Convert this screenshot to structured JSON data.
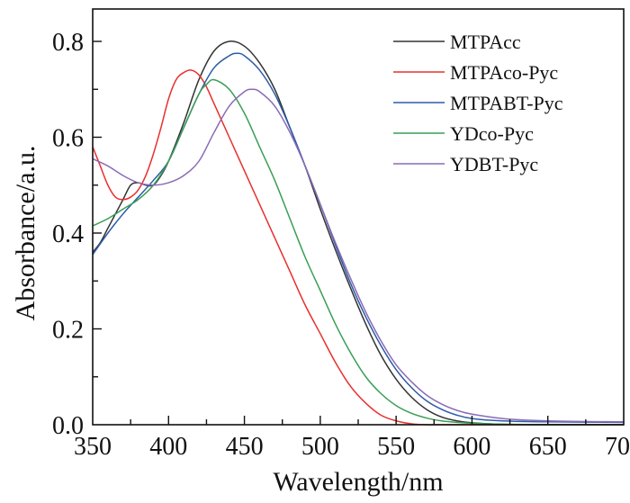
{
  "chart_data": {
    "type": "line",
    "title": "",
    "xlabel": "Wavelength/nm",
    "ylabel": "Absorbance/a.u.",
    "xlim": [
      350,
      700
    ],
    "ylim": [
      0.0,
      0.84
    ],
    "x_ticks": [
      350,
      400,
      450,
      500,
      550,
      600,
      650,
      700
    ],
    "x_tick_labels": [
      "350",
      "400",
      "450",
      "500",
      "550",
      "600",
      "650",
      "700"
    ],
    "x_minor_step": 25,
    "y_ticks": [
      0.0,
      0.2,
      0.4,
      0.6,
      0.8
    ],
    "y_tick_labels": [
      "0.0",
      "0.2",
      "0.4",
      "0.6",
      "0.8"
    ],
    "y_minor_step": 0.1,
    "grid": false,
    "legend_position": "top-right",
    "series": [
      {
        "name": "MTPAcc",
        "color": "#333333",
        "x": [
          350,
          355,
          360,
          365,
          370,
          375,
          380,
          385,
          390,
          395,
          400,
          410,
          420,
          430,
          440,
          450,
          460,
          470,
          480,
          490,
          500,
          510,
          520,
          530,
          540,
          550,
          560,
          570,
          580,
          590,
          600,
          620,
          650,
          700
        ],
        "y": [
          0.36,
          0.38,
          0.41,
          0.44,
          0.47,
          0.5,
          0.505,
          0.5,
          0.5,
          0.52,
          0.55,
          0.63,
          0.72,
          0.78,
          0.8,
          0.79,
          0.755,
          0.7,
          0.62,
          0.54,
          0.45,
          0.365,
          0.285,
          0.21,
          0.145,
          0.095,
          0.058,
          0.032,
          0.016,
          0.008,
          0.004,
          0.001,
          0.0,
          0.0
        ]
      },
      {
        "name": "MTPAco-Pyc",
        "color": "#e8302c",
        "x": [
          350,
          355,
          360,
          365,
          370,
          375,
          380,
          385,
          390,
          395,
          400,
          405,
          410,
          415,
          420,
          425,
          430,
          440,
          450,
          460,
          470,
          480,
          490,
          500,
          510,
          520,
          530,
          540,
          550,
          560,
          570,
          580,
          600,
          650,
          700
        ],
        "y": [
          0.58,
          0.54,
          0.5,
          0.475,
          0.47,
          0.475,
          0.49,
          0.52,
          0.565,
          0.62,
          0.68,
          0.72,
          0.735,
          0.74,
          0.73,
          0.705,
          0.67,
          0.6,
          0.53,
          0.46,
          0.39,
          0.32,
          0.25,
          0.19,
          0.13,
          0.08,
          0.045,
          0.02,
          0.008,
          0.002,
          0.0,
          0.0,
          0.0,
          0.0,
          0.0
        ]
      },
      {
        "name": "MTPABT-Pyc",
        "color": "#2c5ba8",
        "x": [
          350,
          360,
          370,
          380,
          390,
          400,
          410,
          420,
          430,
          440,
          445,
          450,
          460,
          470,
          480,
          490,
          500,
          510,
          520,
          530,
          540,
          550,
          560,
          570,
          580,
          590,
          600,
          620,
          650,
          700
        ],
        "y": [
          0.355,
          0.4,
          0.44,
          0.475,
          0.51,
          0.55,
          0.62,
          0.69,
          0.745,
          0.77,
          0.775,
          0.77,
          0.74,
          0.69,
          0.62,
          0.54,
          0.46,
          0.375,
          0.295,
          0.225,
          0.165,
          0.115,
          0.078,
          0.05,
          0.032,
          0.02,
          0.013,
          0.008,
          0.006,
          0.005
        ]
      },
      {
        "name": "YDco-Pyc",
        "color": "#3a9e55",
        "x": [
          350,
          360,
          370,
          380,
          390,
          400,
          410,
          420,
          425,
          430,
          440,
          450,
          460,
          470,
          480,
          490,
          500,
          510,
          520,
          530,
          540,
          550,
          560,
          570,
          580,
          590,
          600,
          620,
          650,
          700
        ],
        "y": [
          0.415,
          0.43,
          0.45,
          0.47,
          0.5,
          0.55,
          0.62,
          0.69,
          0.71,
          0.72,
          0.7,
          0.65,
          0.58,
          0.51,
          0.43,
          0.35,
          0.28,
          0.21,
          0.15,
          0.1,
          0.065,
          0.04,
          0.024,
          0.014,
          0.008,
          0.005,
          0.003,
          0.001,
          0.0,
          0.0
        ]
      },
      {
        "name": "YDBT-Pyc",
        "color": "#8a6bb5",
        "x": [
          350,
          360,
          370,
          380,
          390,
          400,
          410,
          420,
          430,
          440,
          450,
          455,
          460,
          470,
          480,
          490,
          500,
          510,
          520,
          530,
          540,
          550,
          560,
          570,
          580,
          590,
          600,
          620,
          650,
          700
        ],
        "y": [
          0.555,
          0.54,
          0.52,
          0.505,
          0.5,
          0.505,
          0.52,
          0.55,
          0.61,
          0.665,
          0.695,
          0.7,
          0.695,
          0.665,
          0.61,
          0.54,
          0.46,
          0.38,
          0.305,
          0.235,
          0.175,
          0.125,
          0.09,
          0.062,
          0.043,
          0.03,
          0.022,
          0.013,
          0.008,
          0.006
        ]
      }
    ]
  }
}
